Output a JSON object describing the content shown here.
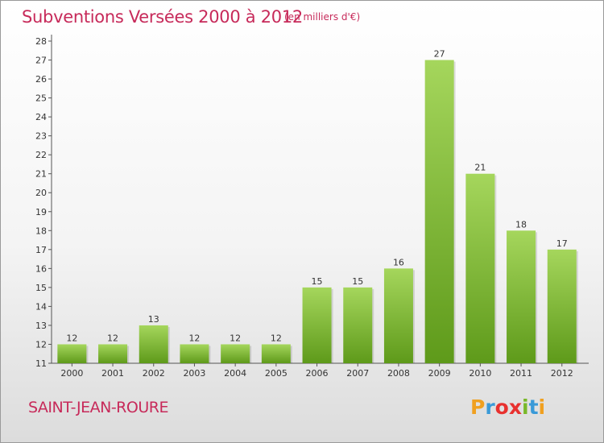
{
  "header": {
    "title": "Subventions Versées 2000 à 2012",
    "unit": "(en milliers d'€)"
  },
  "footer": {
    "commune": "SAINT-JEAN-ROURE",
    "logo_letters": [
      "P",
      "r",
      "o",
      "x",
      "i",
      "t",
      "i"
    ],
    "logo_colors": [
      "#f0a020",
      "#3a9ad8",
      "#e8312f",
      "#e8312f",
      "#79b829",
      "#3a9ad8",
      "#f0a020"
    ]
  },
  "chart_data": {
    "type": "bar",
    "categories": [
      "2000",
      "2001",
      "2002",
      "2003",
      "2004",
      "2005",
      "2006",
      "2007",
      "2008",
      "2009",
      "2010",
      "2011",
      "2012"
    ],
    "values": [
      12,
      12,
      13,
      12,
      12,
      12,
      15,
      15,
      16,
      27,
      21,
      18,
      17
    ],
    "ylim": [
      11,
      28
    ],
    "yticks": [
      11,
      12,
      13,
      14,
      15,
      16,
      17,
      18,
      19,
      20,
      21,
      22,
      23,
      24,
      25,
      26,
      27,
      28
    ],
    "grid": false,
    "bar_color_top": "#a5d65c",
    "bar_color_bottom": "#5e9a1a"
  }
}
